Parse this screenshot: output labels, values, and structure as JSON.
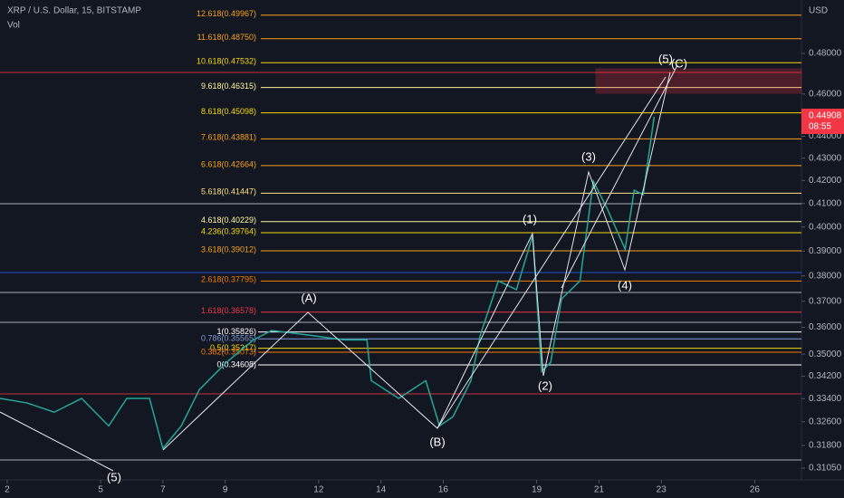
{
  "chart_data": {
    "type": "line",
    "title": "XRP / U.S. Dollar, 15, BITSTAMP",
    "subtitle": "Vol",
    "y_unit": "USD",
    "log_scale": true,
    "x": [
      1.77,
      2.64,
      3.51,
      4.39,
      5.26,
      5.84,
      6.57,
      7.0,
      7.59,
      8.17,
      9.04,
      9.91,
      10.49,
      11.66,
      12.82,
      13.55,
      13.69,
      14.57,
      15.44,
      15.88,
      16.31,
      16.89,
      17.19,
      17.77,
      18.35,
      18.87,
      19.16,
      19.45,
      19.8,
      20.39,
      20.82,
      21.26,
      21.84,
      22.13,
      22.42,
      22.77
    ],
    "series": [
      {
        "color": "#26a69a",
        "values": [
          0.3341,
          0.3325,
          0.3293,
          0.3341,
          0.3246,
          0.3341,
          0.3341,
          0.317,
          0.3246,
          0.3372,
          0.347,
          0.3553,
          0.3588,
          0.3571,
          0.3553,
          0.3553,
          0.3404,
          0.3341,
          0.3404,
          0.3246,
          0.3277,
          0.3404,
          0.3571,
          0.378,
          0.3745,
          0.3964,
          0.3437,
          0.347,
          0.3709,
          0.378,
          0.4197,
          0.4079,
          0.3908,
          0.4158,
          0.4138,
          0.4491
        ]
      }
    ],
    "xlim": [
      1.77,
      27.5
    ],
    "xticks": [
      2,
      5,
      7,
      9,
      12,
      14,
      16,
      19,
      21,
      23,
      26
    ],
    "ylim": [
      0.3067,
      0.5077
    ],
    "yticks": [
      {
        "value": 0.48,
        "label": "0.48000"
      },
      {
        "value": 0.46,
        "label": "0.46000"
      },
      {
        "value": 0.44,
        "label": "0.44000"
      },
      {
        "value": 0.43,
        "label": "0.43000"
      },
      {
        "value": 0.42,
        "label": "0.42000"
      },
      {
        "value": 0.41,
        "label": "0.41000"
      },
      {
        "value": 0.4,
        "label": "0.40000"
      },
      {
        "value": 0.39,
        "label": "0.39000"
      },
      {
        "value": 0.38,
        "label": "0.38000"
      },
      {
        "value": 0.37,
        "label": "0.37000"
      },
      {
        "value": 0.36,
        "label": "0.36000"
      },
      {
        "value": 0.35,
        "label": "0.35000"
      },
      {
        "value": 0.342,
        "label": "0.34200"
      },
      {
        "value": 0.334,
        "label": "0.33400"
      },
      {
        "value": 0.326,
        "label": "0.32600"
      },
      {
        "value": 0.318,
        "label": "0.31800"
      },
      {
        "value": 0.3105,
        "label": "0.31050"
      }
    ],
    "last_price": 0.44908,
    "countdown": "08:55",
    "fib_levels": [
      {
        "label": "12.618(0.49967)",
        "value": 0.49967,
        "color": "#f7a21b"
      },
      {
        "label": "11.618(0.48750)",
        "value": 0.4875,
        "color": "#f7a21b"
      },
      {
        "label": "10.618(0.47532)",
        "value": 0.47532,
        "color": "#f5d90a"
      },
      {
        "label": "9.618(0.46315)",
        "value": 0.46315,
        "color": "#fff59d"
      },
      {
        "label": "8.618(0.45098)",
        "value": 0.45098,
        "color": "#f5d90a"
      },
      {
        "label": "7.618(0.43881)",
        "value": 0.43881,
        "color": "#f7a21b"
      },
      {
        "label": "6.618(0.42664)",
        "value": 0.42664,
        "color": "#f7a21b"
      },
      {
        "label": "5.618(0.41447)",
        "value": 0.41447,
        "color": "#ffe082"
      },
      {
        "label": "4.618(0.40229)",
        "value": 0.40229,
        "color": "#fff59d"
      },
      {
        "label": "4.236(0.39764)",
        "value": 0.39764,
        "color": "#f5d90a"
      },
      {
        "label": "3.618(0.39012)",
        "value": 0.39012,
        "color": "#f7a21b"
      },
      {
        "label": "2.618(0.37795)",
        "value": 0.37795,
        "color": "#f57c00"
      },
      {
        "label": "1.618(0.36578)",
        "value": 0.36578,
        "color": "#f23645"
      },
      {
        "label": "1(0.35826)",
        "value": 0.35826,
        "color": "#ffffff"
      },
      {
        "label": "0.786(0.35565)",
        "value": 0.35565,
        "color": "#7e9bd6"
      },
      {
        "label": "0.5(0.35217)",
        "value": 0.35217,
        "color": "#f5d90a"
      },
      {
        "label": "0.382(0.35073)",
        "value": 0.35073,
        "color": "#f57c00"
      },
      {
        "label": "0(0.34608)",
        "value": 0.34608,
        "color": "#ffffff"
      }
    ],
    "annotations": [
      "(1)",
      "(2)",
      "(3)",
      "(4)",
      "(5)",
      "(A)",
      "(B)",
      "(C)",
      "(5)"
    ]
  }
}
